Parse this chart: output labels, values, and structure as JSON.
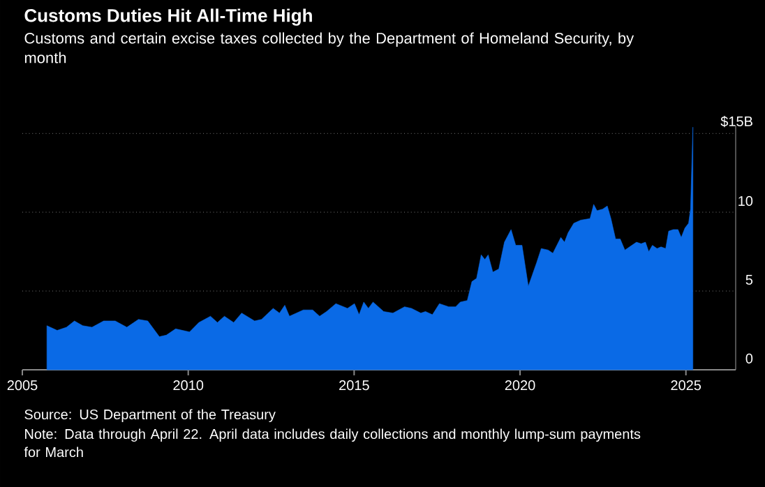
{
  "chart_data": {
    "type": "area",
    "title": "Customs Duties Hit All-Time High",
    "subtitle": "Customs and certain excise taxes collected by the Department of Homeland Security, by month",
    "annotations": [
      "Source: US Department of the Treasury",
      "Note: Data through April 22. April data includes daily collections and monthly lump-sum payments for March"
    ],
    "x": [
      2005.74,
      2006.05,
      2006.33,
      2006.57,
      2006.82,
      2007.1,
      2007.45,
      2007.8,
      2008.15,
      2008.5,
      2008.78,
      2009.13,
      2009.34,
      2009.62,
      2010.04,
      2010.32,
      2010.67,
      2010.88,
      2011.09,
      2011.37,
      2011.61,
      2012.0,
      2012.21,
      2012.56,
      2012.75,
      2012.91,
      2013.05,
      2013.47,
      2013.75,
      2013.96,
      2014.17,
      2014.45,
      2014.8,
      2015.01,
      2015.15,
      2015.29,
      2015.43,
      2015.57,
      2015.89,
      2016.17,
      2016.52,
      2016.73,
      2017.01,
      2017.15,
      2017.36,
      2017.57,
      2017.85,
      2018.06,
      2018.2,
      2018.41,
      2018.55,
      2018.69,
      2018.83,
      2018.94,
      2019.04,
      2019.18,
      2019.36,
      2019.53,
      2019.73,
      2019.87,
      2020.06,
      2020.25,
      2020.5,
      2020.64,
      2020.85,
      2020.99,
      2021.23,
      2021.34,
      2021.45,
      2021.62,
      2021.83,
      2022.11,
      2022.22,
      2022.32,
      2022.49,
      2022.63,
      2022.74,
      2022.88,
      2023.02,
      2023.16,
      2023.37,
      2023.51,
      2023.65,
      2023.78,
      2023.88,
      2023.99,
      2024.13,
      2024.25,
      2024.39,
      2024.48,
      2024.62,
      2024.76,
      2024.86,
      2024.97,
      2025.08,
      2025.14,
      2025.21
    ],
    "values": [
      2.8,
      2.5,
      2.7,
      3.1,
      2.8,
      2.7,
      3.1,
      3.1,
      2.7,
      3.2,
      3.1,
      2.1,
      2.2,
      2.6,
      2.4,
      3.0,
      3.4,
      3.0,
      3.4,
      3.0,
      3.6,
      3.1,
      3.2,
      3.9,
      3.6,
      4.1,
      3.4,
      3.8,
      3.8,
      3.4,
      3.7,
      4.2,
      3.9,
      4.2,
      3.5,
      4.3,
      3.9,
      4.3,
      3.7,
      3.6,
      4.0,
      3.9,
      3.6,
      3.7,
      3.5,
      4.2,
      4.0,
      4.0,
      4.3,
      4.4,
      5.6,
      5.8,
      7.3,
      7.0,
      7.3,
      6.2,
      6.4,
      8.1,
      8.9,
      7.9,
      7.9,
      5.3,
      6.8,
      7.7,
      7.6,
      7.4,
      8.4,
      8.1,
      8.7,
      9.3,
      9.5,
      9.6,
      10.5,
      10.1,
      10.2,
      10.4,
      9.6,
      8.3,
      8.3,
      7.6,
      7.9,
      8.1,
      8.0,
      8.1,
      7.5,
      7.9,
      7.7,
      7.8,
      7.7,
      8.8,
      8.9,
      8.9,
      8.4,
      9.0,
      9.3,
      10.2,
      15.4
    ],
    "color": "#0a6ae6",
    "xlim": [
      2005,
      2026.5
    ],
    "ylim": [
      0,
      15.5
    ],
    "xticks": [
      2005,
      2010,
      2015,
      2020,
      2025
    ],
    "yticks": [
      0,
      5,
      10,
      {
        "value": 15,
        "label": "$15B"
      }
    ],
    "grid": "y"
  }
}
